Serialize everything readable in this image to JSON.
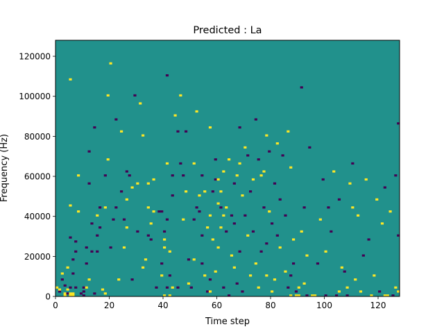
{
  "chart_data": {
    "type": "heatmap",
    "title": "Predicted : La",
    "xlabel": "Time step",
    "ylabel": "Frequency (Hz)",
    "xlim": [
      0,
      128
    ],
    "ylim": [
      0,
      128000
    ],
    "n_time_steps": 128,
    "n_freq_bins": 128,
    "x_ticks": [
      0,
      20,
      40,
      60,
      80,
      100,
      120
    ],
    "y_ticks": [
      0,
      20000,
      40000,
      60000,
      80000,
      100000,
      120000
    ],
    "colors": {
      "background": "#21918c",
      "high": "#fde725",
      "low": "#440154"
    },
    "value_levels": {
      "low": -1,
      "background": 0,
      "high": 1
    },
    "default_value": 0,
    "cells": [
      [
        0,
        4,
        1
      ],
      [
        1,
        2,
        -1
      ],
      [
        1,
        3,
        1
      ],
      [
        2,
        8,
        -1
      ],
      [
        2,
        11,
        1
      ],
      [
        3,
        0,
        1
      ],
      [
        3,
        1,
        1
      ],
      [
        3,
        5,
        -1
      ],
      [
        4,
        3,
        1
      ],
      [
        4,
        14,
        1
      ],
      [
        4,
        1,
        -1
      ],
      [
        5,
        0,
        1
      ],
      [
        5,
        1,
        1
      ],
      [
        5,
        4,
        -1
      ],
      [
        5,
        29,
        -1
      ],
      [
        5,
        45,
        1
      ],
      [
        5,
        108,
        1
      ],
      [
        6,
        0,
        1
      ],
      [
        6,
        1,
        1
      ],
      [
        6,
        11,
        -1
      ],
      [
        6,
        18,
        -1
      ],
      [
        7,
        22,
        -1
      ],
      [
        7,
        27,
        -1
      ],
      [
        7,
        4,
        -1
      ],
      [
        8,
        42,
        1
      ],
      [
        8,
        60,
        1
      ],
      [
        9,
        1,
        -1
      ],
      [
        10,
        0,
        -1
      ],
      [
        10,
        2,
        -1
      ],
      [
        10,
        4,
        -1
      ],
      [
        11,
        16,
        -1
      ],
      [
        11,
        24,
        -1
      ],
      [
        11,
        4,
        1
      ],
      [
        12,
        72,
        -1
      ],
      [
        12,
        56,
        -1
      ],
      [
        12,
        8,
        1
      ],
      [
        13,
        22,
        -1
      ],
      [
        13,
        36,
        -1
      ],
      [
        14,
        1,
        -1
      ],
      [
        14,
        84,
        -1
      ],
      [
        15,
        40,
        1
      ],
      [
        15,
        30,
        -1
      ],
      [
        15,
        22,
        -1
      ],
      [
        16,
        44,
        -1
      ],
      [
        16,
        34,
        -1
      ],
      [
        17,
        3,
        1
      ],
      [
        18,
        44,
        1
      ],
      [
        18,
        1,
        1
      ],
      [
        18,
        60,
        -1
      ],
      [
        19,
        68,
        1
      ],
      [
        19,
        100,
        1
      ],
      [
        20,
        24,
        -1
      ],
      [
        20,
        116,
        1
      ],
      [
        21,
        38,
        -1
      ],
      [
        22,
        44,
        -1
      ],
      [
        22,
        88,
        -1
      ],
      [
        23,
        8,
        1
      ],
      [
        24,
        82,
        1
      ],
      [
        24,
        52,
        -1
      ],
      [
        25,
        38,
        -1
      ],
      [
        25,
        24,
        1
      ],
      [
        26,
        34,
        1
      ],
      [
        26,
        48,
        1
      ],
      [
        26,
        62,
        -1
      ],
      [
        27,
        60,
        -1
      ],
      [
        28,
        8,
        -1
      ],
      [
        28,
        54,
        1
      ],
      [
        29,
        100,
        -1
      ],
      [
        30,
        56,
        1
      ],
      [
        30,
        32,
        -1
      ],
      [
        31,
        96,
        1
      ],
      [
        32,
        80,
        1
      ],
      [
        32,
        14,
        1
      ],
      [
        33,
        18,
        1
      ],
      [
        34,
        56,
        1
      ],
      [
        34,
        44,
        1
      ],
      [
        34,
        30,
        -1
      ],
      [
        35,
        36,
        1
      ],
      [
        35,
        28,
        -1
      ],
      [
        36,
        58,
        1
      ],
      [
        36,
        42,
        1
      ],
      [
        37,
        4,
        -1
      ],
      [
        38,
        42,
        -1
      ],
      [
        39,
        42,
        -1
      ],
      [
        39,
        16,
        -1
      ],
      [
        39,
        10,
        1
      ],
      [
        40,
        24,
        1
      ],
      [
        40,
        28,
        1
      ],
      [
        40,
        0,
        1
      ],
      [
        40,
        32,
        -1
      ],
      [
        41,
        4,
        -1
      ],
      [
        41,
        38,
        -1
      ],
      [
        41,
        66,
        1
      ],
      [
        41,
        110,
        -1
      ],
      [
        42,
        0,
        1
      ],
      [
        42,
        10,
        -1
      ],
      [
        42,
        22,
        1
      ],
      [
        43,
        4,
        1
      ],
      [
        43,
        50,
        -1
      ],
      [
        43,
        60,
        -1
      ],
      [
        44,
        90,
        1
      ],
      [
        45,
        4,
        -1
      ],
      [
        45,
        82,
        -1
      ],
      [
        46,
        66,
        -1
      ],
      [
        46,
        100,
        1
      ],
      [
        47,
        38,
        1
      ],
      [
        47,
        60,
        -1
      ],
      [
        48,
        82,
        -1
      ],
      [
        48,
        52,
        1
      ],
      [
        49,
        18,
        -1
      ],
      [
        49,
        6,
        1
      ],
      [
        50,
        4,
        -1
      ],
      [
        51,
        18,
        1
      ],
      [
        51,
        38,
        -1
      ],
      [
        51,
        66,
        1
      ],
      [
        52,
        44,
        -1
      ],
      [
        52,
        92,
        1
      ],
      [
        53,
        42,
        -1
      ],
      [
        53,
        50,
        1
      ],
      [
        54,
        16,
        -1
      ],
      [
        54,
        30,
        -1
      ],
      [
        54,
        60,
        -1
      ],
      [
        55,
        10,
        1
      ],
      [
        55,
        52,
        1
      ],
      [
        56,
        2,
        -1
      ],
      [
        56,
        34,
        1
      ],
      [
        57,
        2,
        1
      ],
      [
        57,
        8,
        -1
      ],
      [
        57,
        40,
        1
      ],
      [
        57,
        84,
        1
      ],
      [
        58,
        28,
        1
      ],
      [
        58,
        52,
        -1
      ],
      [
        59,
        58,
        -1
      ],
      [
        59,
        12,
        1
      ],
      [
        59,
        68,
        -1
      ],
      [
        60,
        24,
        1
      ],
      [
        60,
        46,
        1
      ],
      [
        60,
        58,
        1
      ],
      [
        61,
        34,
        1
      ],
      [
        61,
        44,
        -1
      ],
      [
        61,
        52,
        1
      ],
      [
        62,
        4,
        -1
      ],
      [
        62,
        40,
        1
      ],
      [
        62,
        62,
        1
      ],
      [
        63,
        32,
        -1
      ],
      [
        63,
        44,
        1
      ],
      [
        64,
        0,
        -1
      ],
      [
        64,
        68,
        1
      ],
      [
        65,
        20,
        1
      ],
      [
        65,
        40,
        -1
      ],
      [
        66,
        14,
        1
      ],
      [
        66,
        36,
        -1
      ],
      [
        66,
        56,
        -1
      ],
      [
        67,
        60,
        1
      ],
      [
        67,
        6,
        -1
      ],
      [
        68,
        22,
        -1
      ],
      [
        68,
        66,
        1
      ],
      [
        68,
        84,
        -1
      ],
      [
        69,
        50,
        1
      ],
      [
        69,
        2,
        -1
      ],
      [
        70,
        74,
        1
      ],
      [
        70,
        40,
        -1
      ],
      [
        71,
        30,
        1
      ],
      [
        71,
        70,
        -1
      ],
      [
        72,
        10,
        1
      ],
      [
        72,
        52,
        -1
      ],
      [
        73,
        32,
        -1
      ],
      [
        73,
        58,
        1
      ],
      [
        74,
        16,
        1
      ],
      [
        74,
        88,
        -1
      ],
      [
        75,
        68,
        -1
      ],
      [
        75,
        4,
        1
      ],
      [
        76,
        60,
        1
      ],
      [
        76,
        22,
        -1
      ],
      [
        77,
        44,
        -1
      ],
      [
        77,
        62,
        1
      ],
      [
        78,
        10,
        1
      ],
      [
        78,
        26,
        -1
      ],
      [
        78,
        80,
        1
      ],
      [
        79,
        42,
        1
      ],
      [
        79,
        72,
        -1
      ],
      [
        80,
        2,
        1
      ],
      [
        80,
        36,
        -1
      ],
      [
        81,
        56,
        -1
      ],
      [
        81,
        8,
        1
      ],
      [
        82,
        76,
        1
      ],
      [
        82,
        30,
        -1
      ],
      [
        83,
        48,
        -1
      ],
      [
        83,
        24,
        1
      ],
      [
        84,
        70,
        -1
      ],
      [
        85,
        12,
        1
      ],
      [
        85,
        40,
        -1
      ],
      [
        86,
        4,
        -1
      ],
      [
        86,
        82,
        1
      ],
      [
        87,
        0,
        1
      ],
      [
        87,
        10,
        -1
      ],
      [
        87,
        64,
        1
      ],
      [
        88,
        16,
        -1
      ],
      [
        88,
        28,
        1
      ],
      [
        89,
        0,
        1
      ],
      [
        89,
        2,
        -1
      ],
      [
        90,
        0,
        1
      ],
      [
        90,
        4,
        1
      ],
      [
        91,
        32,
        1
      ],
      [
        91,
        104,
        -1
      ],
      [
        92,
        44,
        -1
      ],
      [
        92,
        6,
        1
      ],
      [
        93,
        0,
        -1
      ],
      [
        93,
        20,
        1
      ],
      [
        94,
        74,
        -1
      ],
      [
        95,
        0,
        1
      ],
      [
        96,
        0,
        1
      ],
      [
        97,
        16,
        -1
      ],
      [
        98,
        38,
        1
      ],
      [
        99,
        58,
        -1
      ],
      [
        100,
        0,
        -1
      ],
      [
        100,
        22,
        1
      ],
      [
        101,
        44,
        -1
      ],
      [
        102,
        32,
        -1
      ],
      [
        103,
        62,
        1
      ],
      [
        104,
        0,
        -1
      ],
      [
        105,
        2,
        1
      ],
      [
        105,
        48,
        -1
      ],
      [
        106,
        14,
        1
      ],
      [
        107,
        12,
        -1
      ],
      [
        108,
        0,
        -1
      ],
      [
        108,
        4,
        1
      ],
      [
        109,
        56,
        1
      ],
      [
        110,
        66,
        -1
      ],
      [
        110,
        44,
        1
      ],
      [
        111,
        8,
        1
      ],
      [
        112,
        40,
        1
      ],
      [
        113,
        2,
        1
      ],
      [
        114,
        20,
        -1
      ],
      [
        115,
        58,
        1
      ],
      [
        116,
        28,
        -1
      ],
      [
        117,
        0,
        1
      ],
      [
        118,
        10,
        1
      ],
      [
        119,
        48,
        1
      ],
      [
        120,
        2,
        -1
      ],
      [
        121,
        36,
        1
      ],
      [
        122,
        0,
        1
      ],
      [
        122,
        54,
        -1
      ],
      [
        123,
        0,
        1
      ],
      [
        124,
        42,
        1
      ],
      [
        125,
        0,
        -1
      ],
      [
        126,
        4,
        1
      ],
      [
        126,
        60,
        -1
      ],
      [
        127,
        2,
        1
      ],
      [
        127,
        30,
        -1
      ],
      [
        127,
        86,
        -1
      ]
    ]
  }
}
